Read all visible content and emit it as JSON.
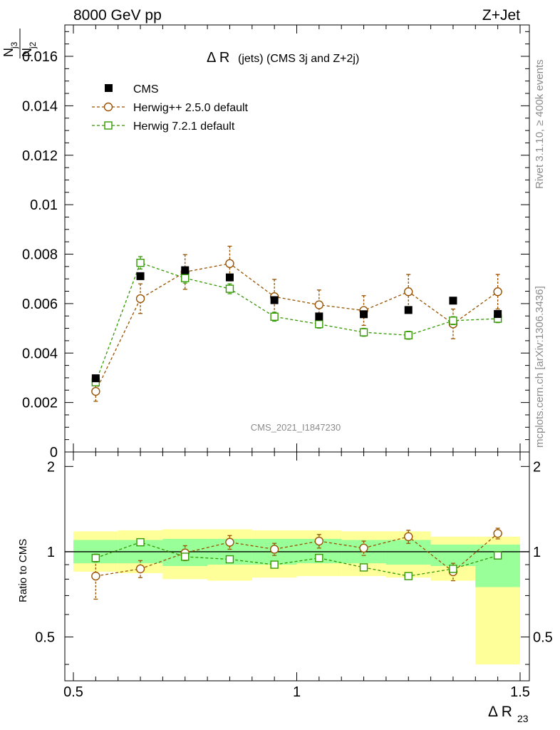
{
  "chart_data": {
    "type": "scatter",
    "header_left": "8000 GeV pp",
    "header_right": "Z+Jet",
    "title_main": "Δ R",
    "title_rest": "(jets) (CMS 3j and Z+2j)",
    "ylabel_top": {
      "num": "N",
      "num_sub": "j3",
      "den": "N",
      "den_sub": "j2"
    },
    "ylabel_ratio": "Ratio to CMS",
    "xlabel_main": "Δ R",
    "xlabel_sub": "23",
    "watermark": "CMS_2021_I1847230",
    "side_text_top": "Rivet 3.1.10, ≥ 400k events",
    "side_text_bottom": "mcplots.cern.ch [arXiv:1306.3436]",
    "xlim": [
      0.5,
      1.5
    ],
    "ylim": [
      0,
      0.0175
    ],
    "ratio_ylim": [
      0.35,
      2.25
    ],
    "x_ticks": [
      0.5,
      1,
      1.5
    ],
    "x_tick_labels": [
      "0.5",
      "1",
      "1.5"
    ],
    "y_ticks": [
      0,
      0.002,
      0.004,
      0.006,
      0.008,
      0.01,
      0.012,
      0.014,
      0.016
    ],
    "y_tick_labels": [
      "0",
      "0.002",
      "0.004",
      "0.006",
      "0.008",
      "0.01",
      "0.012",
      "0.014",
      "0.016"
    ],
    "ratio_ticks": [
      0.5,
      1,
      2
    ],
    "ratio_tick_labels": [
      "0.5",
      "1",
      "2"
    ],
    "bins": [
      0.5,
      0.6,
      0.7,
      0.8,
      0.9,
      1.0,
      1.1,
      1.2,
      1.3,
      1.4,
      1.5
    ],
    "x": [
      0.55,
      0.65,
      0.75,
      0.85,
      0.95,
      1.05,
      1.15,
      1.25,
      1.35,
      1.45
    ],
    "series": [
      {
        "name": "CMS",
        "color": "#000000",
        "marker": "filled-square",
        "values": [
          0.00298,
          0.00711,
          0.00735,
          0.00706,
          0.00614,
          0.00548,
          0.00557,
          0.00574,
          0.00612,
          0.00558
        ]
      },
      {
        "name": "Herwig++ 2.5.0 default",
        "color": "#995200",
        "marker": "open-circle",
        "values": [
          0.00245,
          0.0062,
          0.00728,
          0.00762,
          0.00628,
          0.00595,
          0.00572,
          0.00648,
          0.00518,
          0.00648
        ],
        "errors": [
          0.0004,
          0.0006,
          0.0007,
          0.0007,
          0.0007,
          0.0006,
          0.0006,
          0.0007,
          0.0006,
          0.0007
        ],
        "ratio": [
          0.82,
          0.87,
          0.99,
          1.08,
          1.02,
          1.09,
          1.03,
          1.13,
          0.85,
          1.16
        ],
        "ratio_errors": [
          0.14,
          0.06,
          0.06,
          0.06,
          0.05,
          0.06,
          0.06,
          0.06,
          0.06,
          0.05
        ]
      },
      {
        "name": "Herwig 7.2.1 default",
        "color": "#339900",
        "marker": "open-square",
        "values": [
          0.00282,
          0.00765,
          0.00703,
          0.0066,
          0.00547,
          0.00517,
          0.00484,
          0.00472,
          0.00531,
          0.00539
        ],
        "errors": [
          0.00012,
          0.00025,
          0.0002,
          0.0002,
          0.00018,
          0.00016,
          0.00016,
          0.00016,
          0.00016,
          0.00016
        ],
        "ratio": [
          0.95,
          1.08,
          0.96,
          0.94,
          0.9,
          0.95,
          0.88,
          0.82,
          0.87,
          0.97
        ],
        "ratio_errors": [
          0.03,
          0.02,
          0.02,
          0.02,
          0.02,
          0.02,
          0.02,
          0.02,
          0.02,
          0.02
        ]
      }
    ],
    "ratio_band_green": [
      [
        0.91,
        1.1
      ],
      [
        0.91,
        1.1
      ],
      [
        0.89,
        1.11
      ],
      [
        0.9,
        1.11
      ],
      [
        0.9,
        1.11
      ],
      [
        0.91,
        1.11
      ],
      [
        0.91,
        1.1
      ],
      [
        0.9,
        1.1
      ],
      [
        0.89,
        1.06
      ],
      [
        0.75,
        1.06
      ]
    ],
    "ratio_band_yellow": [
      [
        0.85,
        1.18
      ],
      [
        0.84,
        1.19
      ],
      [
        0.8,
        1.2
      ],
      [
        0.79,
        1.2
      ],
      [
        0.81,
        1.19
      ],
      [
        0.82,
        1.19
      ],
      [
        0.82,
        1.18
      ],
      [
        0.81,
        1.18
      ],
      [
        0.79,
        1.13
      ],
      [
        0.4,
        1.13
      ]
    ]
  }
}
